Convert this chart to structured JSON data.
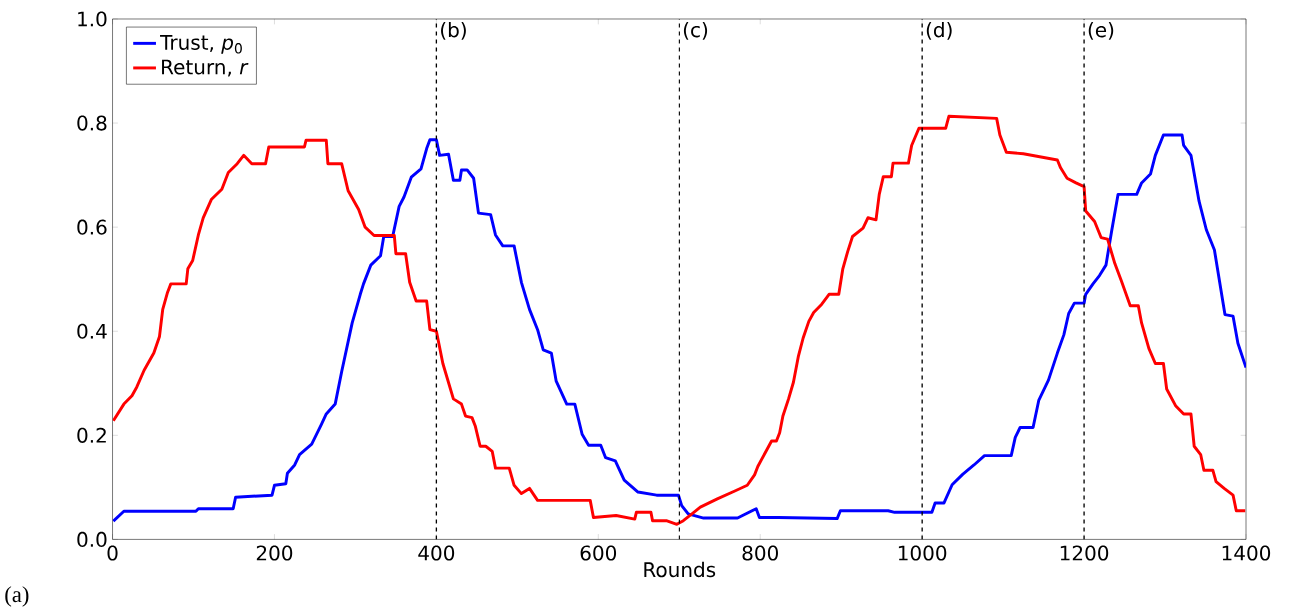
{
  "chart_data": {
    "type": "line",
    "xlabel": "Rounds",
    "annotations": [
      "(a)"
    ],
    "legend": "top left",
    "line_style": "solid",
    "xlim": [
      0,
      1400
    ],
    "ylim": [
      0,
      1
    ],
    "xticks": [
      0,
      200,
      400,
      600,
      800,
      1000,
      1200,
      1400
    ],
    "yticks": [
      {
        "value": 0,
        "label": "0.0"
      },
      {
        "value": 0.2,
        "label": "0.2"
      },
      {
        "value": 0.4,
        "label": "0.4"
      },
      {
        "value": 0.6,
        "label": "0.6"
      },
      {
        "value": 0.8,
        "label": "0.8"
      },
      {
        "value": 1,
        "label": "1.0"
      }
    ],
    "ref_lines": [
      {
        "axis": "x",
        "value": 400,
        "label": "(b)",
        "color": "#000000",
        "line_style": "dashed"
      },
      {
        "axis": "x",
        "value": 700,
        "label": "(c)",
        "color": "#000000",
        "line_style": "dashed"
      },
      {
        "axis": "x",
        "value": 1000,
        "label": "(d)",
        "color": "#000000",
        "line_style": "dashed"
      },
      {
        "axis": "x",
        "value": 1200,
        "label": "(e)",
        "color": "#000000",
        "line_style": "dashed"
      }
    ],
    "series": [
      {
        "name": "Trust, *p*$_{0}$",
        "color": "#0000ff",
        "x": [
          1,
          14,
          103,
          106,
          149,
          152,
          197,
          200,
          214,
          216,
          225,
          231,
          246,
          258,
          264,
          275,
          283,
          296,
          306,
          310,
          319,
          331,
          335,
          346,
          354,
          360,
          369,
          381,
          388,
          392,
          400,
          404,
          415,
          421,
          429,
          431,
          438,
          446,
          452,
          467,
          473,
          482,
          496,
          505,
          515,
          525,
          532,
          542,
          548,
          561,
          571,
          580,
          588,
          603,
          609,
          621,
          632,
          649,
          672,
          699,
          703,
          711,
          730,
          772,
          795,
          799,
          822,
          895,
          899,
          958,
          966,
          1012,
          1016,
          1027,
          1037,
          1050,
          1064,
          1077,
          1110,
          1115,
          1121,
          1137,
          1144,
          1156,
          1167,
          1175,
          1181,
          1188,
          1200,
          1202,
          1211,
          1219,
          1227,
          1234,
          1242,
          1265,
          1271,
          1282,
          1288,
          1298,
          1321,
          1323,
          1332,
          1342,
          1351,
          1361,
          1374,
          1384,
          1390,
          1400
        ],
        "values": [
          0.035,
          0.054,
          0.054,
          0.059,
          0.059,
          0.081,
          0.085,
          0.104,
          0.107,
          0.127,
          0.143,
          0.163,
          0.183,
          0.221,
          0.241,
          0.26,
          0.322,
          0.416,
          0.471,
          0.491,
          0.527,
          0.545,
          0.582,
          0.582,
          0.64,
          0.658,
          0.696,
          0.712,
          0.751,
          0.768,
          0.768,
          0.738,
          0.74,
          0.69,
          0.69,
          0.71,
          0.71,
          0.694,
          0.627,
          0.624,
          0.585,
          0.564,
          0.564,
          0.494,
          0.442,
          0.403,
          0.364,
          0.358,
          0.304,
          0.26,
          0.26,
          0.202,
          0.181,
          0.181,
          0.157,
          0.151,
          0.114,
          0.091,
          0.085,
          0.085,
          0.065,
          0.049,
          0.041,
          0.041,
          0.059,
          0.042,
          0.042,
          0.04,
          0.055,
          0.055,
          0.052,
          0.052,
          0.07,
          0.07,
          0.105,
          0.125,
          0.143,
          0.161,
          0.161,
          0.196,
          0.215,
          0.215,
          0.267,
          0.306,
          0.358,
          0.393,
          0.434,
          0.454,
          0.454,
          0.471,
          0.491,
          0.507,
          0.527,
          0.592,
          0.663,
          0.663,
          0.685,
          0.702,
          0.738,
          0.777,
          0.777,
          0.757,
          0.738,
          0.65,
          0.595,
          0.556,
          0.432,
          0.429,
          0.377,
          0.33
        ]
      },
      {
        "name": "Return, *r*",
        "color": "#ff0000",
        "x": [
          1,
          14,
          24,
          30,
          39,
          51,
          58,
          62,
          68,
          72,
          91,
          93,
          99,
          106,
          112,
          122,
          135,
          143,
          154,
          162,
          172,
          189,
          193,
          237,
          239,
          264,
          266,
          283,
          291,
          304,
          312,
          323,
          348,
          350,
          362,
          367,
          375,
          388,
          392,
          400,
          408,
          421,
          431,
          436,
          444,
          448,
          454,
          461,
          469,
          473,
          490,
          496,
          505,
          515,
          525,
          590,
          594,
          622,
          645,
          647,
          665,
          667,
          684,
          697,
          705,
          718,
          726,
          747,
          770,
          784,
          793,
          797,
          807,
          814,
          820,
          824,
          828,
          835,
          841,
          847,
          853,
          860,
          866,
          876,
          885,
          897,
          902,
          908,
          914,
          927,
          933,
          943,
          947,
          952,
          962,
          964,
          983,
          987,
          996,
          1029,
          1033,
          1092,
          1096,
          1104,
          1125,
          1167,
          1171,
          1179,
          1190,
          1200,
          1202,
          1213,
          1221,
          1229,
          1238,
          1246,
          1257,
          1267,
          1271,
          1280,
          1288,
          1298,
          1302,
          1313,
          1323,
          1332,
          1336,
          1344,
          1348,
          1359,
          1363,
          1373,
          1384,
          1388,
          1399
        ],
        "values": [
          0.228,
          0.26,
          0.276,
          0.293,
          0.325,
          0.358,
          0.39,
          0.442,
          0.475,
          0.491,
          0.491,
          0.52,
          0.536,
          0.585,
          0.618,
          0.653,
          0.673,
          0.705,
          0.722,
          0.738,
          0.722,
          0.722,
          0.754,
          0.754,
          0.767,
          0.767,
          0.722,
          0.722,
          0.67,
          0.634,
          0.6,
          0.584,
          0.584,
          0.549,
          0.549,
          0.494,
          0.458,
          0.458,
          0.403,
          0.4,
          0.338,
          0.27,
          0.26,
          0.237,
          0.234,
          0.218,
          0.179,
          0.179,
          0.169,
          0.137,
          0.137,
          0.104,
          0.088,
          0.098,
          0.075,
          0.075,
          0.042,
          0.046,
          0.039,
          0.052,
          0.052,
          0.036,
          0.036,
          0.029,
          0.036,
          0.052,
          0.062,
          0.078,
          0.094,
          0.104,
          0.124,
          0.14,
          0.169,
          0.189,
          0.189,
          0.205,
          0.237,
          0.27,
          0.302,
          0.351,
          0.387,
          0.419,
          0.436,
          0.452,
          0.471,
          0.471,
          0.52,
          0.553,
          0.582,
          0.598,
          0.618,
          0.614,
          0.663,
          0.697,
          0.697,
          0.723,
          0.723,
          0.757,
          0.79,
          0.79,
          0.813,
          0.809,
          0.777,
          0.744,
          0.741,
          0.729,
          0.714,
          0.694,
          0.685,
          0.678,
          0.631,
          0.611,
          0.58,
          0.577,
          0.53,
          0.497,
          0.449,
          0.449,
          0.416,
          0.367,
          0.338,
          0.338,
          0.289,
          0.257,
          0.241,
          0.241,
          0.179,
          0.163,
          0.133,
          0.133,
          0.111,
          0.098,
          0.085,
          0.055,
          0.055
        ]
      }
    ]
  }
}
